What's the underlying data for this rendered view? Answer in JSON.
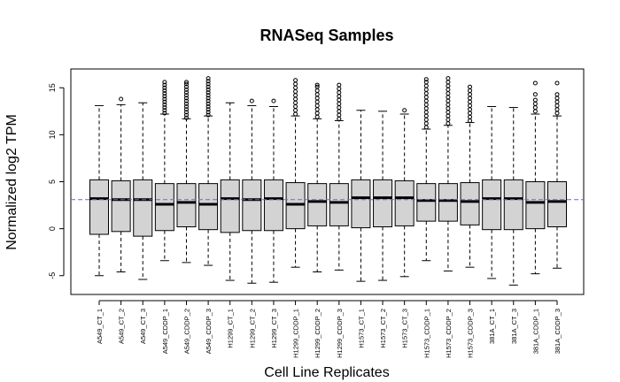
{
  "chart_data": {
    "type": "boxplot",
    "title": "RNASeq Samples",
    "xlabel": "Cell Line Replicates",
    "ylabel": "Normalized log2 TPM",
    "ylim": [
      -7,
      17
    ],
    "yticks": [
      -5,
      0,
      5,
      10,
      15
    ],
    "reference_line": {
      "y": 3.1,
      "style": "dashed",
      "color": "#6f6fae"
    },
    "box_fill": "#d3d3d3",
    "categories": [
      "A549_CT_1",
      "A549_CT_2",
      "A549_CT_3",
      "A549_CDDP_1",
      "A549_CDDP_2",
      "A549_CDDP_3",
      "H1299_CT_1",
      "H1299_CT_2",
      "H1299_CT_3",
      "H1299_CDDP_1",
      "H1299_CDDP_2",
      "H1299_CDDP_3",
      "H1573_CT_1",
      "H1573_CT_2",
      "H1573_CT_3",
      "H1573_CDDP_1",
      "H1573_CDDP_2",
      "H1573_CDDP_3",
      "381A_CT_1",
      "381A_CT_3",
      "381A_CDDP_1",
      "381A_CDDP_3"
    ],
    "boxes": [
      {
        "whisker_low": -5.0,
        "q1": -0.6,
        "median": 3.2,
        "q3": 5.2,
        "whisker_high": 13.1,
        "outliers": []
      },
      {
        "whisker_low": -4.6,
        "q1": -0.3,
        "median": 3.1,
        "q3": 5.1,
        "whisker_high": 13.2,
        "outliers": [
          13.8
        ]
      },
      {
        "whisker_low": -5.4,
        "q1": -0.8,
        "median": 3.1,
        "q3": 5.2,
        "whisker_high": 13.4,
        "outliers": []
      },
      {
        "whisker_low": -3.4,
        "q1": -0.2,
        "median": 2.6,
        "q3": 4.8,
        "whisker_high": 12.2,
        "outliers": [
          12.3,
          12.6,
          12.9,
          13.2,
          13.5,
          13.8,
          14.1,
          14.4,
          14.7,
          15.0,
          15.3,
          15.6
        ]
      },
      {
        "whisker_low": -3.6,
        "q1": 0.2,
        "median": 2.8,
        "q3": 4.8,
        "whisker_high": 11.7,
        "outliers": [
          11.8,
          12.1,
          12.4,
          12.7,
          13.0,
          13.3,
          13.6,
          13.9,
          14.2,
          14.5,
          14.8,
          15.1,
          15.4,
          15.6
        ]
      },
      {
        "whisker_low": -3.9,
        "q1": -0.1,
        "median": 2.6,
        "q3": 4.8,
        "whisker_high": 12.0,
        "outliers": [
          12.1,
          12.4,
          12.7,
          13.0,
          13.3,
          13.6,
          13.9,
          14.2,
          14.5,
          14.8,
          15.1,
          15.4,
          15.7,
          16.0
        ]
      },
      {
        "whisker_low": -5.5,
        "q1": -0.4,
        "median": 3.2,
        "q3": 5.2,
        "whisker_high": 13.4,
        "outliers": []
      },
      {
        "whisker_low": -5.8,
        "q1": -0.2,
        "median": 3.1,
        "q3": 5.2,
        "whisker_high": 13.1,
        "outliers": [
          13.6
        ]
      },
      {
        "whisker_low": -5.7,
        "q1": -0.2,
        "median": 3.2,
        "q3": 5.2,
        "whisker_high": 13.0,
        "outliers": [
          13.6
        ]
      },
      {
        "whisker_low": -4.1,
        "q1": 0.0,
        "median": 2.6,
        "q3": 4.9,
        "whisker_high": 12.0,
        "outliers": [
          12.2,
          12.6,
          13.0,
          13.4,
          13.8,
          14.2,
          14.6,
          15.0,
          15.4,
          15.8
        ]
      },
      {
        "whisker_low": -4.6,
        "q1": 0.3,
        "median": 2.9,
        "q3": 4.8,
        "whisker_high": 11.7,
        "outliers": [
          11.9,
          12.3,
          12.7,
          13.1,
          13.5,
          13.9,
          14.3,
          14.7,
          15.1,
          15.3
        ]
      },
      {
        "whisker_low": -4.4,
        "q1": 0.3,
        "median": 2.8,
        "q3": 4.8,
        "whisker_high": 11.5,
        "outliers": [
          11.7,
          12.1,
          12.5,
          12.9,
          13.3,
          13.7,
          14.1,
          14.5,
          14.9,
          15.3
        ]
      },
      {
        "whisker_low": -5.6,
        "q1": 0.1,
        "median": 3.3,
        "q3": 5.2,
        "whisker_high": 12.6,
        "outliers": []
      },
      {
        "whisker_low": -5.5,
        "q1": 0.2,
        "median": 3.3,
        "q3": 5.2,
        "whisker_high": 12.5,
        "outliers": []
      },
      {
        "whisker_low": -5.1,
        "q1": 0.3,
        "median": 3.3,
        "q3": 5.1,
        "whisker_high": 12.2,
        "outliers": [
          12.6
        ]
      },
      {
        "whisker_low": -3.4,
        "q1": 0.8,
        "median": 3.0,
        "q3": 4.8,
        "whisker_high": 10.6,
        "outliers": [
          10.8,
          11.2,
          11.6,
          12.0,
          12.4,
          12.8,
          13.2,
          13.6,
          14.0,
          14.4,
          14.8,
          15.2,
          15.6,
          15.9
        ]
      },
      {
        "whisker_low": -4.5,
        "q1": 0.8,
        "median": 3.0,
        "q3": 4.8,
        "whisker_high": 11.0,
        "outliers": [
          11.2,
          11.6,
          12.0,
          12.4,
          12.8,
          13.2,
          13.6,
          14.0,
          14.4,
          14.8,
          15.2,
          15.6,
          16.0
        ]
      },
      {
        "whisker_low": -4.1,
        "q1": 0.4,
        "median": 2.9,
        "q3": 4.9,
        "whisker_high": 11.3,
        "outliers": [
          11.5,
          11.9,
          12.3,
          12.7,
          13.1,
          13.5,
          13.9,
          14.3,
          14.7,
          15.1
        ]
      },
      {
        "whisker_low": -5.3,
        "q1": -0.1,
        "median": 3.2,
        "q3": 5.2,
        "whisker_high": 13.0,
        "outliers": []
      },
      {
        "whisker_low": -6.0,
        "q1": -0.1,
        "median": 3.2,
        "q3": 5.2,
        "whisker_high": 12.9,
        "outliers": []
      },
      {
        "whisker_low": -4.8,
        "q1": 0.0,
        "median": 2.8,
        "q3": 5.0,
        "whisker_high": 12.2,
        "outliers": [
          12.5,
          12.9,
          13.3,
          13.7,
          14.3,
          15.5
        ]
      },
      {
        "whisker_low": -4.2,
        "q1": 0.2,
        "median": 2.9,
        "q3": 5.0,
        "whisker_high": 12.0,
        "outliers": [
          12.3,
          12.7,
          13.1,
          13.5,
          13.9,
          14.3,
          15.5
        ]
      }
    ]
  }
}
